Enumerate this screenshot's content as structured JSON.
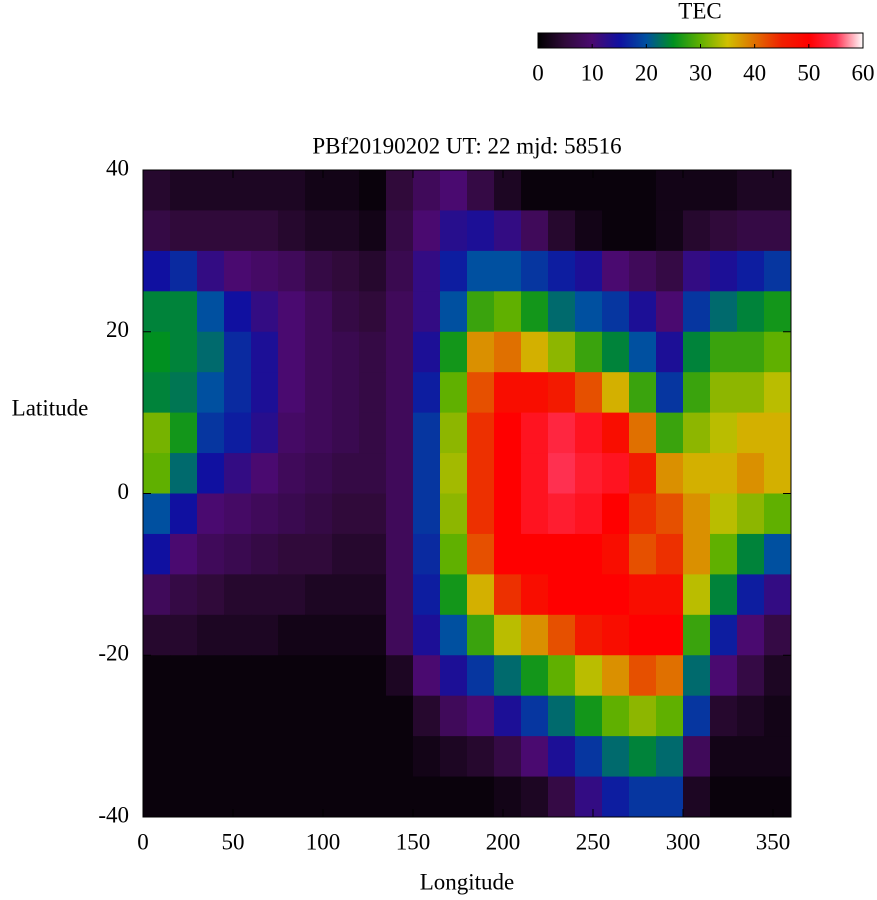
{
  "chart_data": {
    "type": "heatmap",
    "title": "PBf20190202  UT: 22  mjd: 58516",
    "xlabel": "Longitude",
    "ylabel": "Latitude",
    "colorbar_label": "TEC",
    "xlim": [
      0,
      360
    ],
    "xticks": [
      0,
      50,
      100,
      150,
      200,
      250,
      300,
      350
    ],
    "ylim": [
      -40,
      40
    ],
    "yticks": [
      -40,
      -20,
      0,
      20,
      40
    ],
    "cblim": [
      0,
      60
    ],
    "cbticks": [
      0,
      10,
      20,
      30,
      40,
      50,
      60
    ],
    "colormap": [
      "#000000",
      "#300a3a",
      "#4a0a70",
      "#1010a0",
      "#0050a0",
      "#009020",
      "#60b000",
      "#d0c000",
      "#e07000",
      "#f02000",
      "#ff0000",
      "#ff3050",
      "#ffffff"
    ],
    "x": [
      0,
      15,
      30,
      45,
      60,
      75,
      90,
      105,
      120,
      135,
      150,
      165,
      180,
      195,
      210,
      225,
      240,
      255,
      270,
      285,
      300,
      315,
      330,
      345,
      360
    ],
    "y": [
      40,
      35,
      30,
      25,
      20,
      15,
      10,
      5,
      0,
      -5,
      -10,
      -15,
      -20,
      -25,
      -30,
      -35,
      -40
    ],
    "values": [
      [
        4,
        3,
        3,
        3,
        3,
        3,
        2,
        2,
        1,
        5,
        8,
        10,
        6,
        3,
        1,
        1,
        1,
        1,
        1,
        2,
        2,
        2,
        3,
        3
      ],
      [
        6,
        5,
        5,
        5,
        5,
        4,
        3,
        3,
        2,
        6,
        10,
        13,
        14,
        12,
        8,
        4,
        2,
        1,
        1,
        2,
        4,
        5,
        6,
        6
      ],
      [
        15,
        17,
        12,
        10,
        9,
        8,
        6,
        5,
        4,
        7,
        12,
        16,
        20,
        20,
        18,
        16,
        14,
        10,
        8,
        6,
        12,
        14,
        16,
        18
      ],
      [
        24,
        24,
        20,
        15,
        12,
        10,
        8,
        6,
        5,
        8,
        12,
        20,
        28,
        30,
        26,
        22,
        20,
        18,
        14,
        10,
        18,
        22,
        24,
        26
      ],
      [
        25,
        24,
        22,
        17,
        14,
        10,
        8,
        7,
        6,
        8,
        14,
        26,
        38,
        40,
        36,
        32,
        28,
        24,
        20,
        14,
        24,
        28,
        28,
        30
      ],
      [
        24,
        23,
        20,
        17,
        14,
        10,
        8,
        7,
        6,
        8,
        16,
        30,
        42,
        48,
        48,
        46,
        42,
        36,
        28,
        18,
        28,
        32,
        32,
        34
      ],
      [
        31,
        26,
        18,
        16,
        13,
        9,
        8,
        7,
        6,
        8,
        18,
        32,
        44,
        50,
        52,
        54,
        52,
        48,
        40,
        28,
        32,
        34,
        36,
        36
      ],
      [
        30,
        22,
        15,
        12,
        10,
        8,
        7,
        6,
        6,
        8,
        18,
        33,
        44,
        50,
        52,
        55,
        53,
        52,
        46,
        38,
        36,
        36,
        38,
        36
      ],
      [
        20,
        15,
        10,
        9,
        8,
        7,
        6,
        5,
        5,
        8,
        18,
        32,
        44,
        50,
        52,
        53,
        52,
        50,
        44,
        42,
        38,
        34,
        32,
        30
      ],
      [
        15,
        10,
        8,
        7,
        6,
        5,
        5,
        4,
        4,
        8,
        17,
        30,
        42,
        50,
        50,
        50,
        50,
        48,
        42,
        44,
        38,
        30,
        24,
        20
      ],
      [
        8,
        6,
        5,
        4,
        4,
        4,
        3,
        3,
        3,
        8,
        16,
        26,
        36,
        44,
        48,
        50,
        50,
        50,
        48,
        48,
        34,
        24,
        16,
        12
      ],
      [
        4,
        4,
        3,
        3,
        3,
        2,
        2,
        2,
        2,
        8,
        14,
        20,
        28,
        34,
        38,
        42,
        46,
        48,
        50,
        50,
        28,
        16,
        10,
        6
      ],
      [
        1,
        1,
        1,
        1,
        1,
        1,
        1,
        1,
        1,
        3,
        10,
        14,
        18,
        22,
        26,
        30,
        34,
        38,
        42,
        40,
        22,
        10,
        6,
        3
      ],
      [
        1,
        1,
        1,
        1,
        1,
        1,
        1,
        1,
        1,
        1,
        4,
        8,
        10,
        14,
        18,
        22,
        26,
        30,
        32,
        30,
        18,
        4,
        3,
        2
      ],
      [
        1,
        1,
        1,
        1,
        1,
        1,
        1,
        1,
        1,
        1,
        2,
        3,
        4,
        6,
        10,
        14,
        18,
        22,
        24,
        22,
        8,
        2,
        2,
        2
      ],
      [
        1,
        1,
        1,
        1,
        1,
        1,
        1,
        1,
        1,
        1,
        1,
        1,
        1,
        2,
        3,
        6,
        12,
        16,
        18,
        18,
        3,
        1,
        1,
        1
      ]
    ]
  }
}
